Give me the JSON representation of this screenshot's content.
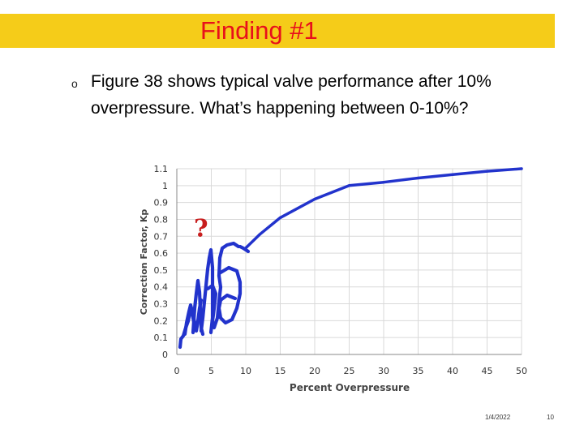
{
  "slide": {
    "title": "Finding #1",
    "title_bar_color": "#f5cc19",
    "title_color": "#e8101b",
    "bullet": "o",
    "text": "Figure 38 shows typical valve performance after 10% overpressure.   What’s happening between 0-10%?",
    "date": "1/4/2022",
    "page": "10"
  },
  "chart_data": {
    "type": "line",
    "xlabel": "Percent Overpressure",
    "ylabel": "Correction Factor, Kp",
    "xlim": [
      0,
      50
    ],
    "ylim": [
      0,
      1.1
    ],
    "xticks": [
      "0",
      "5",
      "10",
      "15",
      "20",
      "25",
      "30",
      "35",
      "40",
      "45",
      "50"
    ],
    "yticks": [
      "0",
      "0.1",
      "0.2",
      "0.3",
      "0.4",
      "0.5",
      "0.6",
      "0.7",
      "0.8",
      "0.9",
      "1",
      "1.1"
    ],
    "grid": true,
    "series": [
      {
        "color": "#2233cc",
        "points": [
          [
            10,
            0.63
          ],
          [
            12,
            0.71
          ],
          [
            15,
            0.81
          ],
          [
            20,
            0.92
          ],
          [
            25,
            1.0
          ],
          [
            30,
            1.02
          ],
          [
            35,
            1.045
          ],
          [
            40,
            1.065
          ],
          [
            45,
            1.085
          ],
          [
            50,
            1.1
          ]
        ]
      }
    ],
    "annotations": [
      {
        "text": "?",
        "x": 3.5,
        "y": 0.7,
        "color": "#c81e1e"
      }
    ],
    "scribble_color": "#2233cc"
  }
}
